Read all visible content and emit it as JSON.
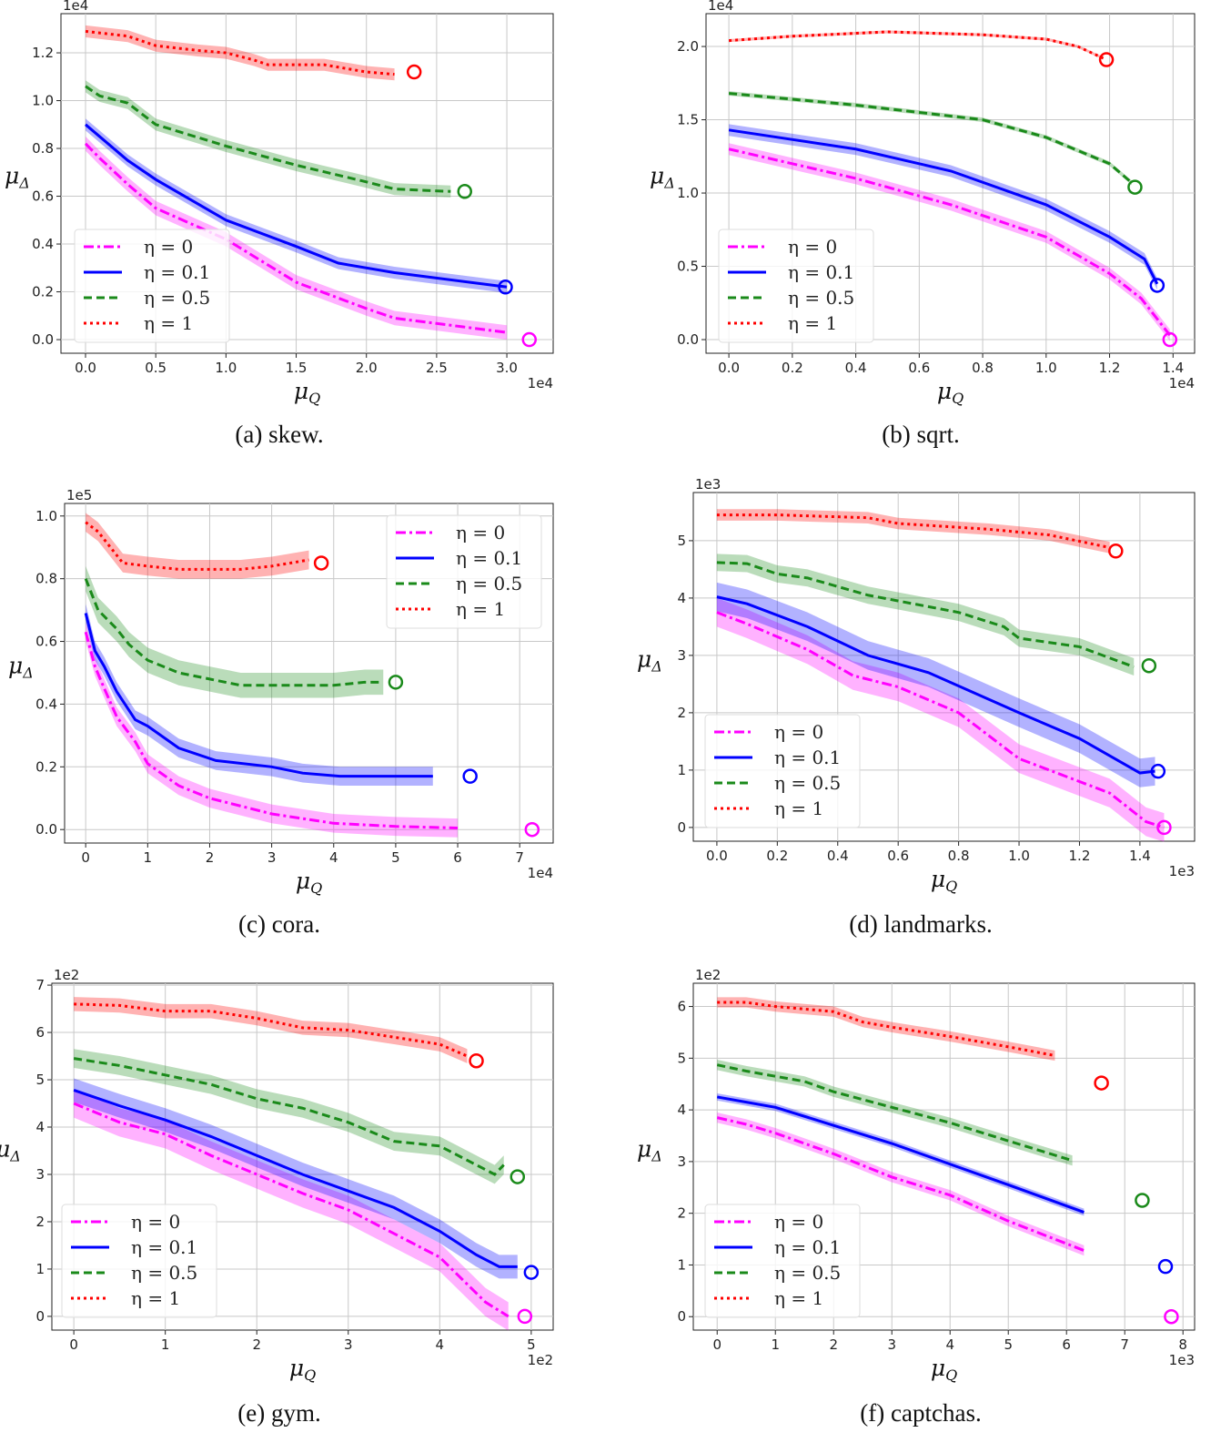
{
  "colors": {
    "eta0": "#ff00ff",
    "eta01": "#0000ff",
    "eta05": "#1a8a1a",
    "eta1": "#ff0000"
  },
  "legend_labels": [
    "η = 0",
    "η = 0.1",
    "η = 0.5",
    "η = 1"
  ],
  "chart_data": [
    {
      "type": "line",
      "caption": "(a) skew.",
      "xlabel": "μQ",
      "ylabel": "μΔ",
      "x_exponent": "1e4",
      "y_exponent": "1e4",
      "xlim": [
        -0.175,
        3.33
      ],
      "ylim": [
        -0.057,
        1.364
      ],
      "xticks": [
        0,
        0.5,
        1,
        1.5,
        2,
        2.5,
        3
      ],
      "xtick_labels": [
        "0.0",
        "0.5",
        "1.0",
        "1.5",
        "2.0",
        "2.5",
        "3.0"
      ],
      "yticks": [
        0,
        0.2,
        0.4,
        0.6,
        0.8,
        1.0,
        1.2
      ],
      "ytick_labels": [
        "0.0",
        "0.2",
        "0.4",
        "0.6",
        "0.8",
        "1.0",
        "1.2"
      ],
      "grid": true,
      "legend": "lower-left",
      "series": [
        {
          "name": "η = 0",
          "band": 0.03,
          "x": [
            0,
            0.1,
            0.3,
            0.5,
            1,
            1.5,
            2,
            2.2,
            3
          ],
          "y": [
            0.82,
            0.76,
            0.65,
            0.55,
            0.42,
            0.24,
            0.13,
            0.09,
            0.03
          ],
          "marker": [
            3.16,
            0
          ]
        },
        {
          "name": "η = 0.1",
          "band": 0.025,
          "x": [
            0,
            0.1,
            0.3,
            0.5,
            1,
            1.5,
            1.8,
            2.2,
            3
          ],
          "y": [
            0.9,
            0.85,
            0.75,
            0.67,
            0.5,
            0.39,
            0.32,
            0.28,
            0.22
          ],
          "marker": [
            2.99,
            0.22
          ]
        },
        {
          "name": "η = 0.5",
          "band": 0.025,
          "x": [
            0,
            0.1,
            0.3,
            0.5,
            1,
            1.5,
            2,
            2.2,
            2.6
          ],
          "y": [
            1.06,
            1.02,
            0.99,
            0.9,
            0.81,
            0.73,
            0.66,
            0.63,
            0.62
          ],
          "marker": [
            2.7,
            0.62
          ]
        },
        {
          "name": "η = 1",
          "band": 0.025,
          "x": [
            0,
            0.3,
            0.5,
            0.8,
            1,
            1.2,
            1.3,
            1.5,
            1.7,
            2,
            2.2
          ],
          "y": [
            1.29,
            1.27,
            1.23,
            1.21,
            1.2,
            1.17,
            1.15,
            1.15,
            1.15,
            1.12,
            1.11
          ],
          "marker": [
            2.34,
            1.12
          ]
        }
      ]
    },
    {
      "type": "line",
      "caption": "(b) sqrt.",
      "xlabel": "μQ",
      "ylabel": "μΔ",
      "x_exponent": "1e4",
      "y_exponent": "1e4",
      "xlim": [
        -0.072,
        1.468
      ],
      "ylim": [
        -0.093,
        2.224
      ],
      "xticks": [
        0,
        0.2,
        0.4,
        0.6,
        0.8,
        1,
        1.2,
        1.4
      ],
      "xtick_labels": [
        "0.0",
        "0.2",
        "0.4",
        "0.6",
        "0.8",
        "1.0",
        "1.2",
        "1.4"
      ],
      "yticks": [
        0,
        0.5,
        1,
        1.5,
        2
      ],
      "ytick_labels": [
        "0.0",
        "0.5",
        "1.0",
        "1.5",
        "2.0"
      ],
      "grid": true,
      "legend": "lower-left",
      "series": [
        {
          "name": "η = 0",
          "band": 0.04,
          "x": [
            0,
            0.4,
            0.7,
            1,
            1.2,
            1.3,
            1.39
          ],
          "y": [
            1.3,
            1.1,
            0.92,
            0.7,
            0.45,
            0.28,
            0.03
          ],
          "marker": [
            1.39,
            0
          ]
        },
        {
          "name": "η = 0.1",
          "band": 0.04,
          "x": [
            0,
            0.4,
            0.7,
            1,
            1.2,
            1.31,
            1.35
          ],
          "y": [
            1.43,
            1.3,
            1.15,
            0.92,
            0.7,
            0.55,
            0.38
          ],
          "marker": [
            1.35,
            0.37
          ]
        },
        {
          "name": "η = 0.5",
          "band": 0.015,
          "x": [
            0,
            0.4,
            0.8,
            1,
            1.2,
            1.27
          ],
          "y": [
            1.68,
            1.6,
            1.5,
            1.38,
            1.2,
            1.07
          ],
          "marker": [
            1.28,
            1.04
          ]
        },
        {
          "name": "η = 1",
          "band": 0.01,
          "x": [
            0,
            0.2,
            0.5,
            0.8,
            1,
            1.1,
            1.18
          ],
          "y": [
            2.04,
            2.07,
            2.1,
            2.08,
            2.05,
            2.0,
            1.92
          ],
          "marker": [
            1.19,
            1.91
          ]
        }
      ]
    },
    {
      "type": "line",
      "caption": "(c) cora.",
      "xlabel": "μQ",
      "ylabel": "μΔ",
      "x_exponent": "1e4",
      "y_exponent": "1e5",
      "xlim": [
        -0.34,
        7.54
      ],
      "ylim": [
        -0.043,
        1.04
      ],
      "xticks": [
        0,
        1,
        2,
        3,
        4,
        5,
        6,
        7
      ],
      "xtick_labels": [
        "0",
        "1",
        "2",
        "3",
        "4",
        "5",
        "6",
        "7"
      ],
      "yticks": [
        0,
        0.2,
        0.4,
        0.6,
        0.8,
        1.0
      ],
      "ytick_labels": [
        "0.0",
        "0.2",
        "0.4",
        "0.6",
        "0.8",
        "1.0"
      ],
      "grid": true,
      "legend": "upper-right",
      "series": [
        {
          "name": "η = 0",
          "band": 0.03,
          "x": [
            0,
            0.15,
            0.3,
            0.5,
            0.8,
            1,
            1.5,
            2,
            3,
            4,
            5,
            6
          ],
          "y": [
            0.63,
            0.52,
            0.45,
            0.36,
            0.28,
            0.21,
            0.14,
            0.1,
            0.05,
            0.02,
            0.01,
            0.005
          ],
          "marker": [
            7.2,
            0
          ]
        },
        {
          "name": "η = 0.1",
          "band": 0.03,
          "x": [
            0,
            0.15,
            0.3,
            0.5,
            0.8,
            1,
            1.5,
            2.1,
            3,
            3.5,
            4.1,
            5,
            5.6
          ],
          "y": [
            0.69,
            0.57,
            0.52,
            0.44,
            0.35,
            0.33,
            0.26,
            0.22,
            0.2,
            0.18,
            0.17,
            0.17,
            0.17
          ],
          "marker": [
            6.2,
            0.17
          ]
        },
        {
          "name": "η = 0.5",
          "band": 0.04,
          "x": [
            0,
            0.2,
            0.5,
            0.7,
            1,
            1.5,
            2,
            2.5,
            3,
            3.5,
            4,
            4.5,
            4.8
          ],
          "y": [
            0.8,
            0.7,
            0.64,
            0.59,
            0.54,
            0.5,
            0.48,
            0.46,
            0.46,
            0.46,
            0.46,
            0.47,
            0.47
          ],
          "marker": [
            5.0,
            0.47
          ]
        },
        {
          "name": "η = 1",
          "band": 0.03,
          "x": [
            0,
            0.2,
            0.4,
            0.6,
            1,
            1.5,
            2,
            2.5,
            3,
            3.6
          ],
          "y": [
            0.98,
            0.95,
            0.9,
            0.85,
            0.84,
            0.83,
            0.83,
            0.83,
            0.84,
            0.86
          ],
          "marker": [
            3.8,
            0.85
          ]
        }
      ]
    },
    {
      "type": "line",
      "caption": "(d) landmarks.",
      "xlabel": "μQ",
      "ylabel": "μΔ",
      "x_exponent": "1e3",
      "y_exponent": "1e3",
      "xlim": [
        -0.078,
        1.581
      ],
      "ylim": [
        -0.24,
        5.84
      ],
      "xticks": [
        0,
        0.2,
        0.4,
        0.6,
        0.8,
        1,
        1.2,
        1.4
      ],
      "xtick_labels": [
        "0.0",
        "0.2",
        "0.4",
        "0.6",
        "0.8",
        "1.0",
        "1.2",
        "1.4"
      ],
      "yticks": [
        0,
        1,
        2,
        3,
        4,
        5
      ],
      "ytick_labels": [
        "0",
        "1",
        "2",
        "3",
        "4",
        "5"
      ],
      "grid": true,
      "legend": "lower-left",
      "series": [
        {
          "name": "η = 0",
          "band": 0.25,
          "x": [
            0,
            0.1,
            0.3,
            0.45,
            0.6,
            0.8,
            1,
            1.3,
            1.42,
            1.48
          ],
          "y": [
            3.75,
            3.55,
            3.1,
            2.65,
            2.45,
            2.0,
            1.2,
            0.6,
            0.1,
            0
          ],
          "marker": [
            1.48,
            0
          ]
        },
        {
          "name": "η = 0.1",
          "band": 0.25,
          "x": [
            0,
            0.1,
            0.3,
            0.5,
            0.6,
            0.7,
            1,
            1.2,
            1.4,
            1.45
          ],
          "y": [
            4.02,
            3.9,
            3.5,
            3.0,
            2.85,
            2.7,
            2.0,
            1.55,
            0.95,
            0.98
          ],
          "marker": [
            1.46,
            0.98
          ]
        },
        {
          "name": "η = 0.5",
          "band": 0.15,
          "x": [
            0,
            0.1,
            0.2,
            0.3,
            0.5,
            0.7,
            0.8,
            0.95,
            1,
            1.2,
            1.38
          ],
          "y": [
            4.62,
            4.6,
            4.42,
            4.35,
            4.05,
            3.85,
            3.75,
            3.5,
            3.3,
            3.15,
            2.8
          ],
          "marker": [
            1.43,
            2.82
          ]
        },
        {
          "name": "η = 1",
          "band": 0.1,
          "x": [
            0,
            0.2,
            0.5,
            0.6,
            0.9,
            1.1,
            1.3
          ],
          "y": [
            5.45,
            5.45,
            5.4,
            5.3,
            5.2,
            5.1,
            4.88
          ],
          "marker": [
            1.32,
            4.82
          ]
        }
      ]
    },
    {
      "type": "line",
      "caption": "(e) gym.",
      "xlabel": "μQ",
      "ylabel": "μΔ",
      "x_exponent": "1e2",
      "y_exponent": "1e2",
      "xlim": [
        -0.24,
        5.24
      ],
      "ylim": [
        -0.29,
        7.04
      ],
      "xticks": [
        0,
        1,
        2,
        3,
        4,
        5
      ],
      "xtick_labels": [
        "0",
        "1",
        "2",
        "3",
        "4",
        "5"
      ],
      "yticks": [
        0,
        1,
        2,
        3,
        4,
        5,
        6,
        7
      ],
      "ytick_labels": [
        "0",
        "1",
        "2",
        "3",
        "4",
        "5",
        "6",
        "7"
      ],
      "grid": true,
      "legend": "lower-left",
      "series": [
        {
          "name": "η = 0",
          "band": 0.3,
          "x": [
            0,
            0.5,
            1,
            1.5,
            2,
            2.5,
            3,
            3.5,
            4,
            4.5,
            4.75
          ],
          "y": [
            4.5,
            4.1,
            3.85,
            3.4,
            3.0,
            2.6,
            2.25,
            1.75,
            1.25,
            0.3,
            0
          ],
          "marker": [
            4.93,
            0
          ]
        },
        {
          "name": "η = 0.1",
          "band": 0.25,
          "x": [
            0,
            0.5,
            1,
            1.5,
            2,
            2.5,
            3,
            3.5,
            4,
            4.4,
            4.65,
            4.85
          ],
          "y": [
            4.78,
            4.45,
            4.15,
            3.8,
            3.4,
            3.0,
            2.65,
            2.3,
            1.8,
            1.3,
            1.05,
            1.05
          ],
          "marker": [
            5.0,
            0.93
          ]
        },
        {
          "name": "η = 0.5",
          "band": 0.2,
          "x": [
            0,
            0.5,
            1,
            1.5,
            2,
            2.5,
            3,
            3.5,
            4,
            4.6,
            4.7
          ],
          "y": [
            5.45,
            5.3,
            5.1,
            4.9,
            4.6,
            4.4,
            4.1,
            3.7,
            3.6,
            3.0,
            3.2
          ],
          "marker": [
            4.85,
            2.95
          ]
        },
        {
          "name": "η = 1",
          "band": 0.15,
          "x": [
            0,
            0.5,
            1,
            1.5,
            2,
            2.5,
            3,
            3.5,
            4,
            4.3
          ],
          "y": [
            6.6,
            6.57,
            6.45,
            6.45,
            6.3,
            6.1,
            6.05,
            5.9,
            5.75,
            5.5
          ],
          "marker": [
            4.4,
            5.4
          ]
        }
      ]
    },
    {
      "type": "line",
      "caption": "(f) captchas.",
      "xlabel": "μQ",
      "ylabel": "μΔ",
      "x_exponent": "1e3",
      "y_exponent": "1e2",
      "xlim": [
        -0.41,
        8.2
      ],
      "ylim": [
        -0.26,
        6.45
      ],
      "xticks": [
        0,
        1,
        2,
        3,
        4,
        5,
        6,
        7,
        8
      ],
      "xtick_labels": [
        "0",
        "1",
        "2",
        "3",
        "4",
        "5",
        "6",
        "7",
        "8"
      ],
      "yticks": [
        0,
        1,
        2,
        3,
        4,
        5,
        6
      ],
      "ytick_labels": [
        "0",
        "1",
        "2",
        "3",
        "4",
        "5",
        "6"
      ],
      "grid": true,
      "legend": "lower-left",
      "series": [
        {
          "name": "η = 0",
          "band": 0.1,
          "x": [
            0,
            0.5,
            1,
            2,
            3,
            4,
            5,
            6.3
          ],
          "y": [
            3.85,
            3.72,
            3.55,
            3.15,
            2.7,
            2.35,
            1.85,
            1.28
          ],
          "marker": [
            7.8,
            0
          ]
        },
        {
          "name": "η = 0.1",
          "band": 0.07,
          "x": [
            0,
            0.5,
            1,
            2,
            3,
            4,
            5,
            6.3
          ],
          "y": [
            4.25,
            4.15,
            4.05,
            3.7,
            3.35,
            2.95,
            2.55,
            2.02
          ],
          "marker": [
            7.7,
            0.97
          ]
        },
        {
          "name": "η = 0.5",
          "band": 0.1,
          "x": [
            0,
            0.5,
            1.5,
            2,
            3,
            4,
            5,
            6.1
          ],
          "y": [
            4.87,
            4.75,
            4.55,
            4.35,
            4.05,
            3.75,
            3.4,
            3.02
          ],
          "marker": [
            7.3,
            2.25
          ]
        },
        {
          "name": "η = 1",
          "band": 0.1,
          "x": [
            0,
            0.5,
            1,
            2,
            2.5,
            3,
            4,
            5,
            5.8
          ],
          "y": [
            6.08,
            6.08,
            6.0,
            5.9,
            5.7,
            5.6,
            5.42,
            5.22,
            5.05
          ],
          "marker": [
            6.6,
            4.52
          ]
        }
      ]
    }
  ]
}
